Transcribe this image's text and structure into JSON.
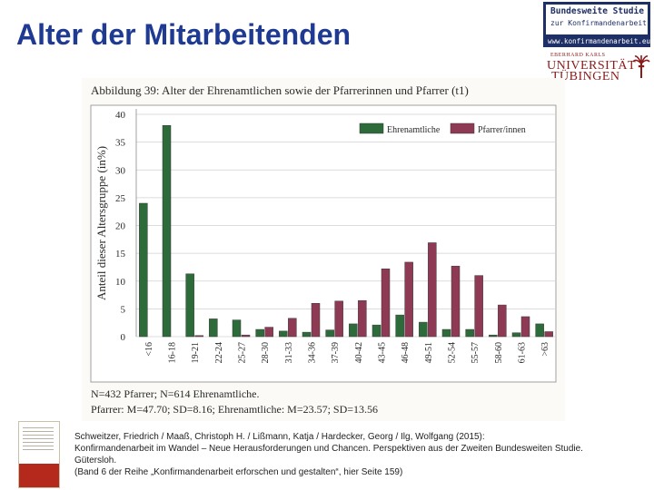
{
  "slide": {
    "title": "Alter der Mitarbeitenden"
  },
  "logo": {
    "line1": "Bundesweite Studie",
    "line2": "zur Konfirmandenarbeit",
    "url": "www.konfirmandenarbeit.eu"
  },
  "university": {
    "small": "EBERHARD KARLS",
    "line1": "UNIVERSITÄT",
    "line2": "TÜBINGEN"
  },
  "chart_data": {
    "type": "bar",
    "title": "Abbildung 39: Alter der Ehrenamtlichen sowie der Pfarrerinnen und Pfarrer (t1)",
    "ylabel": "Anteil dieser Altersgruppe (in%)",
    "xlabel": "",
    "ylim": [
      0,
      40
    ],
    "yticks": [
      0,
      5,
      10,
      15,
      20,
      25,
      30,
      35,
      40
    ],
    "grid": true,
    "legend_position": "top-right",
    "categories": [
      "<16",
      "16-18",
      "19-21",
      "22-24",
      "25-27",
      "28-30",
      "31-33",
      "34-36",
      "37-39",
      "40-42",
      "43-45",
      "46-48",
      "49-51",
      "52-54",
      "55-57",
      "58-60",
      "61-63",
      ">63"
    ],
    "series": [
      {
        "name": "Ehrenamtliche",
        "color": "#2e6b3a",
        "values": [
          24,
          38,
          11.3,
          3.2,
          3,
          1.3,
          1,
          0.8,
          1.2,
          2.3,
          2.1,
          3.9,
          2.6,
          1.3,
          1.3,
          0.3,
          0.7,
          2.3
        ]
      },
      {
        "name": "Pfarrer/innen",
        "color": "#8e3a55",
        "values": [
          0,
          0,
          0.2,
          0,
          0.3,
          1.7,
          3.3,
          6,
          6.4,
          6.5,
          12.2,
          13.4,
          16.9,
          12.7,
          11,
          5.7,
          3.6,
          0.9
        ]
      }
    ],
    "notes": [
      "N=432 Pfarrer; N=614 Ehrenamtliche.",
      "Pfarrer: M=47.70; SD=8.16; Ehrenamtliche: M=23.57; SD=13.56"
    ]
  },
  "citation": {
    "line1": "Schweitzer, Friedrich / Maaß, Christoph H. / Lißmann, Katja / Hardecker, Georg / Ilg, Wolfgang (2015):",
    "line2": "Konfirmandenarbeit im Wandel – Neue Herausforderungen und Chancen. Perspektiven aus der Zweiten Bundesweiten Studie.",
    "line3": "Gütersloh.",
    "line4": "(Band 6 der Reihe „Konfirmandenarbeit erforschen und gestalten“, hier Seite 159)"
  }
}
